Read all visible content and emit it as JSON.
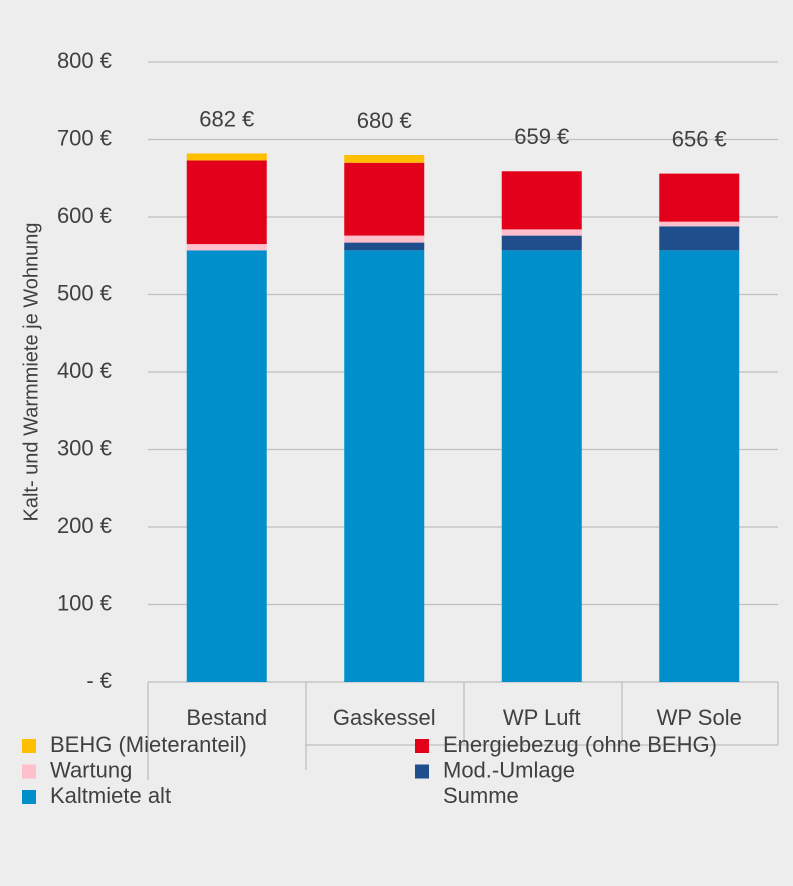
{
  "chart_data": {
    "type": "stacked_bar",
    "y_label": "Kalt- und Warmmiete je Wohnung",
    "categories": [
      "Bestand",
      "Gaskessel",
      "WP Luft",
      "WP Sole"
    ],
    "series": [
      {
        "name": "Kaltmiete alt",
        "color": "#008fca",
        "values": [
          557,
          557,
          557,
          557
        ]
      },
      {
        "name": "Mod.-Umlage",
        "color": "#1f4e8c",
        "values": [
          0,
          10,
          19,
          31
        ]
      },
      {
        "name": "Wartung",
        "color": "#ffc0cb",
        "values": [
          8,
          9,
          8,
          6
        ]
      },
      {
        "name": "Energiebezug (ohne BEHG)",
        "color": "#e2001a",
        "values": [
          108,
          94,
          75,
          62
        ]
      },
      {
        "name": "BEHG (Mieteranteil)",
        "color": "#ffbf00",
        "values": [
          9,
          10,
          0,
          0
        ]
      }
    ],
    "total": {
      "name": "Summe",
      "values": [
        682,
        680,
        659,
        656
      ],
      "value_labels": [
        "682 €",
        "680 €",
        "659 €",
        "656 €"
      ]
    },
    "ylim": [
      0,
      800
    ],
    "yticks": [
      {
        "value": 0,
        "label": "-   €"
      },
      {
        "value": 100,
        "label": "100 €"
      },
      {
        "value": 200,
        "label": "200 €"
      },
      {
        "value": 300,
        "label": "300 €"
      },
      {
        "value": 400,
        "label": "400 €"
      },
      {
        "value": 500,
        "label": "500 €"
      },
      {
        "value": 600,
        "label": "600 €"
      },
      {
        "value": 700,
        "label": "700 €"
      },
      {
        "value": 800,
        "label": "800 €"
      }
    ],
    "grid": true
  }
}
